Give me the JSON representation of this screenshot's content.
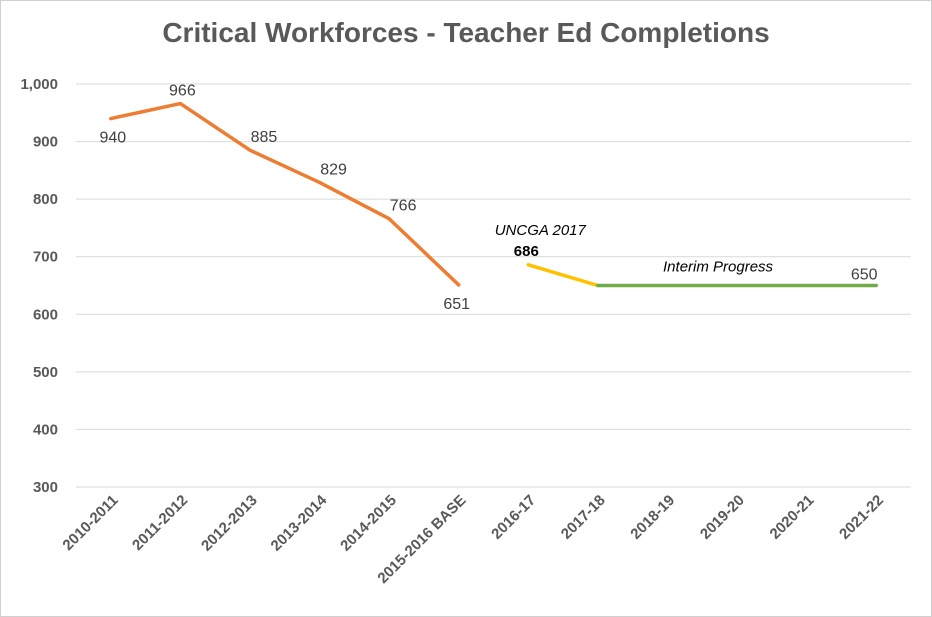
{
  "chart_data": {
    "type": "line",
    "title": "Critical Workforces - Teacher Ed Completions",
    "categories": [
      "2010-2011",
      "2011-2012",
      "2012-2013",
      "2013-2014",
      "2014-2015",
      "2015-2016 BASE",
      "2016-17",
      "2017-18",
      "2018-19",
      "2019-20",
      "2020-21",
      "2021-22"
    ],
    "yticks": [
      "1,000",
      "900",
      "800",
      "700",
      "600",
      "500",
      "400",
      "300"
    ],
    "ylim": [
      300,
      1000
    ],
    "grid": true,
    "series": [
      {
        "color": "#ED7D31",
        "values": [
          940,
          966,
          885,
          829,
          766,
          651,
          null,
          null,
          null,
          null,
          null,
          null
        ]
      },
      {
        "color": "#FFC000",
        "values": [
          null,
          null,
          null,
          null,
          null,
          null,
          686,
          650,
          null,
          null,
          null,
          null
        ]
      },
      {
        "color": "#70AD47",
        "values": [
          null,
          null,
          null,
          null,
          null,
          null,
          null,
          650,
          650,
          650,
          650,
          650
        ]
      }
    ],
    "data_labels": [
      {
        "category": "2010-2011",
        "text": "940"
      },
      {
        "category": "2011-2012",
        "text": "966"
      },
      {
        "category": "2012-2013",
        "text": "885"
      },
      {
        "category": "2013-2014",
        "text": "829"
      },
      {
        "category": "2014-2015",
        "text": "766"
      },
      {
        "category": "2015-2016 BASE",
        "text": "651"
      },
      {
        "category": "2021-22",
        "text": "650"
      }
    ],
    "annotations": {
      "uncga_label": "UNCGA 2017",
      "uncga_value": "686",
      "interim_label": "Interim Progress"
    }
  }
}
